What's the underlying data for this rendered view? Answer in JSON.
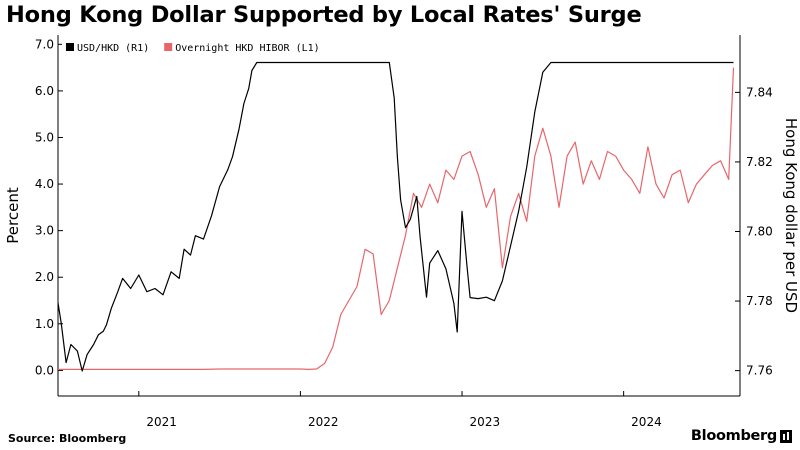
{
  "title": "Hong Kong Dollar Supported by Local Rates' Surge",
  "source": "Source: Bloomberg",
  "brand": "Bloomberg",
  "chart_data": {
    "type": "line",
    "title": "Hong Kong Dollar Supported by Local Rates' Surge",
    "ylabel_left": "Percent",
    "ylabel_right": "Hong Kong dollar per USD",
    "xlim": [
      2020.5,
      2024.72
    ],
    "ylim_left": [
      -0.55,
      7.2
    ],
    "ylim_right": [
      7.7527,
      7.8565
    ],
    "x_ticks": [
      "2021",
      "2022",
      "2023",
      "2024"
    ],
    "y_ticks_left": [
      "0.0",
      "1.0",
      "2.0",
      "3.0",
      "4.0",
      "5.0",
      "6.0",
      "7.0"
    ],
    "y_ticks_right": [
      "7.76",
      "7.78",
      "7.80",
      "7.82",
      "7.84"
    ],
    "grid": false,
    "legend_position": "top-left",
    "colors": {
      "usd_hkd": "#000000",
      "hibor": "#e8666b"
    },
    "series": [
      {
        "name": "USD/HKD (R1)",
        "axis": "right",
        "x": [
          2020.5,
          2020.52,
          2020.55,
          2020.58,
          2020.62,
          2020.65,
          2020.68,
          2020.72,
          2020.75,
          2020.78,
          2020.8,
          2020.83,
          2020.87,
          2020.9,
          2020.95,
          2021.0,
          2021.05,
          2021.1,
          2021.15,
          2021.2,
          2021.25,
          2021.28,
          2021.32,
          2021.35,
          2021.4,
          2021.45,
          2021.5,
          2021.55,
          2021.58,
          2021.62,
          2021.65,
          2021.68,
          2021.7,
          2021.73,
          2021.76,
          2021.8,
          2021.85,
          2021.9,
          2021.95,
          2022.0,
          2022.05,
          2022.1,
          2022.15,
          2022.2,
          2022.25,
          2022.3,
          2022.33,
          2022.36,
          2022.4,
          2022.42,
          2022.45,
          2022.48,
          2022.5,
          2022.55,
          2022.58,
          2022.6,
          2022.62,
          2022.65,
          2022.68,
          2022.72,
          2022.74,
          2022.78,
          2022.8,
          2022.85,
          2022.9,
          2022.95,
          2022.97,
          2023.0,
          2023.03,
          2023.05,
          2023.1,
          2023.15,
          2023.2,
          2023.25,
          2023.3,
          2023.35,
          2023.4,
          2023.45,
          2023.5,
          2023.55,
          2023.6,
          2023.65,
          2023.7,
          2023.75,
          2023.8,
          2023.85,
          2023.9,
          2023.95,
          2024.0,
          2024.05,
          2024.08,
          2024.1,
          2024.12,
          2024.15,
          2024.2,
          2024.22,
          2024.25,
          2024.28,
          2024.3,
          2024.33,
          2024.35,
          2024.38,
          2024.42,
          2024.45,
          2024.48,
          2024.5,
          2024.53,
          2024.56,
          2024.58,
          2024.6,
          2024.62,
          2024.65,
          2024.68
        ],
        "values": [
          7.7795,
          7.7737,
          7.7623,
          7.7675,
          7.7656,
          7.7599,
          7.7646,
          7.7675,
          7.7703,
          7.7713,
          7.7732,
          7.7779,
          7.7827,
          7.7865,
          7.7836,
          7.7875,
          7.7827,
          7.7836,
          7.7818,
          7.7884,
          7.7865,
          7.7949,
          7.7932,
          7.7988,
          7.7978,
          7.8045,
          7.8129,
          7.8177,
          7.8215,
          7.8294,
          7.8368,
          7.8411,
          7.8463,
          7.8486,
          7.8486,
          7.8486,
          7.8486,
          7.8486,
          7.8486,
          7.8486,
          7.8486,
          7.8486,
          7.8486,
          7.8486,
          7.8486,
          7.8486,
          7.8486,
          7.8486,
          7.8486,
          7.8486,
          7.8486,
          7.8486,
          7.8486,
          7.8486,
          7.8384,
          7.8213,
          7.8091,
          7.8011,
          7.8035,
          7.8101,
          7.7987,
          7.7811,
          7.7909,
          7.7945,
          7.7893,
          7.7793,
          7.7711,
          7.8058,
          7.7903,
          7.781,
          7.7807,
          7.7811,
          7.7801,
          7.7858,
          7.7958,
          7.8058,
          7.8185,
          7.8344,
          7.8458,
          7.8486,
          7.8486,
          7.8486,
          7.8486,
          7.8486,
          7.8486,
          7.8486,
          7.8486,
          7.8486,
          7.8486,
          7.8486,
          7.8486,
          7.8486,
          7.8486,
          7.8486,
          7.8486,
          7.8486,
          7.8486,
          7.8486,
          7.8486,
          7.8486,
          7.8486,
          7.8486,
          7.8486,
          7.8486,
          7.8486,
          7.8486,
          7.8486,
          7.8486,
          7.8486,
          7.8486,
          7.8486,
          7.8486,
          7.8486
        ]
      },
      {
        "name": "Overnight HKD HIBOR (L1)",
        "axis": "left",
        "x": [
          2020.5,
          2020.6,
          2020.7,
          2020.8,
          2020.9,
          2021.0,
          2021.1,
          2021.2,
          2021.3,
          2021.4,
          2021.5,
          2021.6,
          2021.7,
          2021.8,
          2021.9,
          2022.0,
          2022.05,
          2022.1,
          2022.15,
          2022.2,
          2022.25,
          2022.3,
          2022.35,
          2022.4,
          2022.45,
          2022.5,
          2022.55,
          2022.6,
          2022.65,
          2022.7,
          2022.75,
          2022.8,
          2022.85,
          2022.9,
          2022.95,
          2023.0,
          2023.05,
          2023.1,
          2023.15,
          2023.2,
          2023.25,
          2023.3,
          2023.35,
          2023.4,
          2023.45,
          2023.5,
          2023.55,
          2023.6,
          2023.65,
          2023.7,
          2023.75,
          2023.8,
          2023.85,
          2023.9,
          2023.95,
          2024.0,
          2024.05,
          2024.1,
          2024.15,
          2024.2,
          2024.25,
          2024.3,
          2024.35,
          2024.4,
          2024.45,
          2024.5,
          2024.55,
          2024.6,
          2024.65,
          2024.68
        ],
        "values": [
          0.02,
          0.02,
          0.02,
          0.02,
          0.02,
          0.02,
          0.02,
          0.02,
          0.02,
          0.02,
          0.03,
          0.03,
          0.03,
          0.03,
          0.03,
          0.03,
          0.02,
          0.03,
          0.15,
          0.5,
          1.2,
          1.5,
          1.8,
          2.6,
          2.5,
          1.2,
          1.5,
          2.2,
          2.9,
          3.8,
          3.5,
          4.0,
          3.6,
          4.3,
          4.1,
          4.6,
          4.7,
          4.2,
          3.5,
          3.9,
          2.2,
          3.3,
          3.8,
          3.2,
          4.6,
          5.2,
          4.6,
          3.5,
          4.6,
          4.9,
          4.0,
          4.5,
          4.1,
          4.7,
          4.6,
          4.3,
          4.1,
          3.8,
          4.8,
          4.0,
          3.7,
          4.2,
          4.3,
          3.6,
          4.0,
          4.2,
          4.4,
          4.5,
          4.1,
          6.5
        ]
      }
    ]
  }
}
